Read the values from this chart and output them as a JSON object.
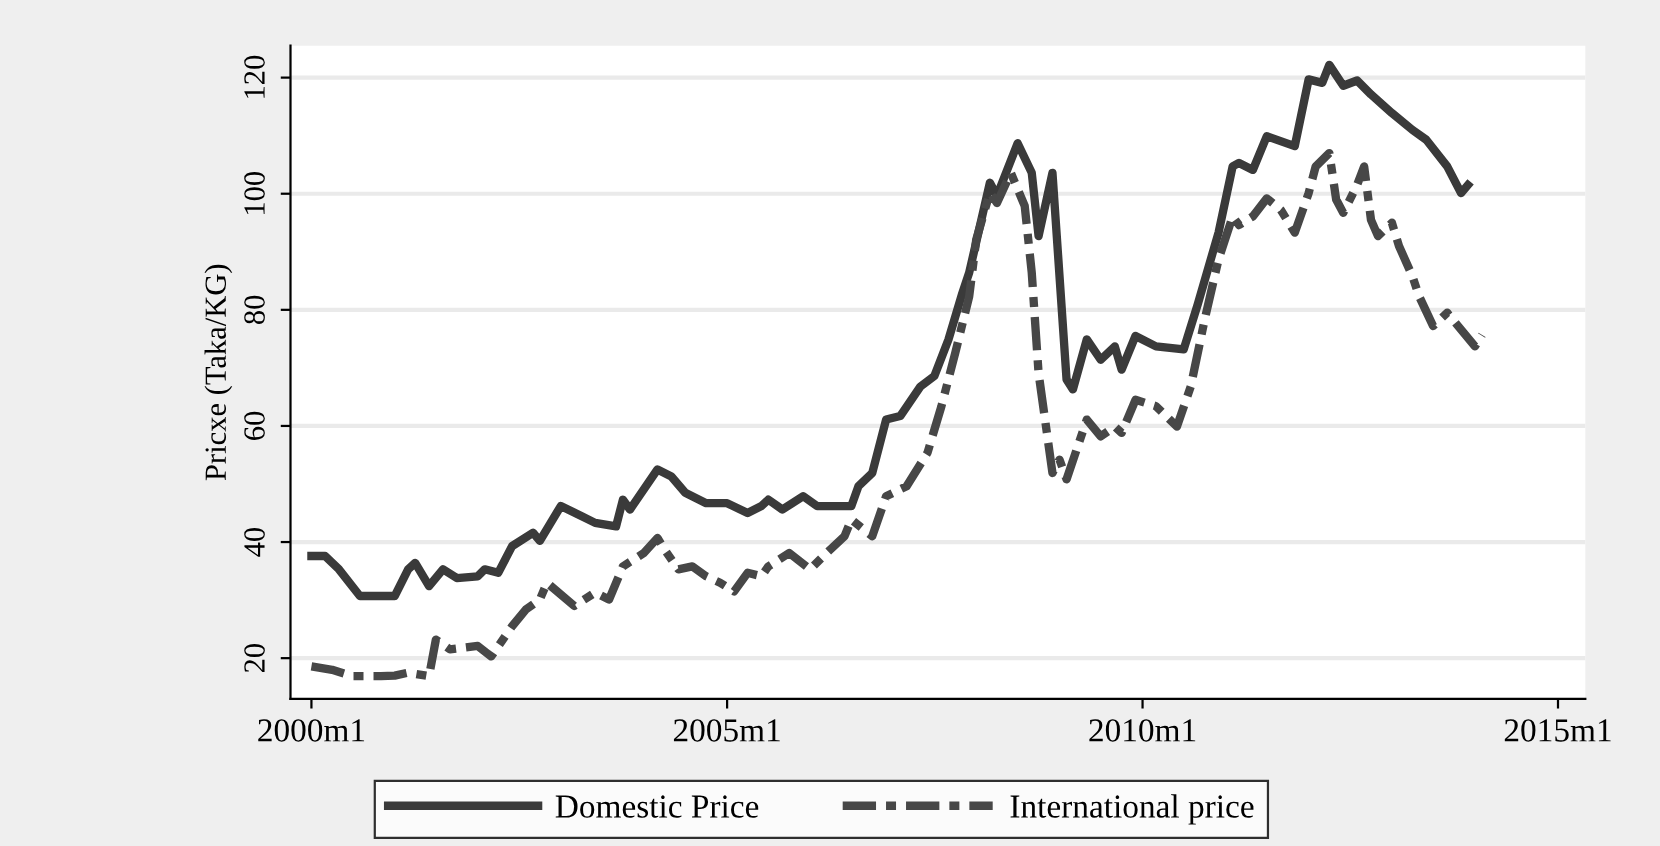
{
  "chart_data": {
    "type": "line",
    "ylabel": "Pricxe (Taka/KG)",
    "xlim": [
      "1999-10",
      "2015-05"
    ],
    "xticks": [
      {
        "value": "2000-01",
        "label": "2000m1"
      },
      {
        "value": "2005-01",
        "label": "2005m1"
      },
      {
        "value": "2010-01",
        "label": "2010m1"
      },
      {
        "value": "2015-01",
        "label": "2015m1"
      }
    ],
    "ylim": [
      13,
      125.5
    ],
    "yticks": [
      20,
      40,
      60,
      80,
      100,
      120
    ],
    "grid": "y",
    "legend": "bottom",
    "series": [
      {
        "name": "Domestic Price",
        "color": "#3a3a3a",
        "line_style": "solid",
        "x": [
          "2000-01",
          "2000-03",
          "2000-05",
          "2000-08",
          "2000-11",
          "2001-01",
          "2001-03",
          "2001-04",
          "2001-06",
          "2001-08",
          "2001-10",
          "2002-01",
          "2002-02",
          "2002-04",
          "2002-06",
          "2002-09",
          "2002-10",
          "2003-01",
          "2003-04",
          "2003-06",
          "2003-09",
          "2003-10",
          "2003-11",
          "2004-03",
          "2004-05",
          "2004-07",
          "2004-10",
          "2005-01",
          "2005-04",
          "2005-06",
          "2005-07",
          "2005-09",
          "2005-12",
          "2006-02",
          "2006-07",
          "2006-08",
          "2006-10",
          "2006-12",
          "2007-02",
          "2007-05",
          "2007-07",
          "2007-09",
          "2007-11",
          "2007-12",
          "2008-03",
          "2008-04",
          "2008-07",
          "2008-09",
          "2008-10",
          "2008-12",
          "2009-02",
          "2009-03",
          "2009-05",
          "2009-07",
          "2009-09",
          "2009-10",
          "2009-12",
          "2010-03",
          "2010-07",
          "2010-09",
          "2010-12",
          "2011-02",
          "2011-03",
          "2011-05",
          "2011-07",
          "2011-11",
          "2012-01",
          "2012-03",
          "2012-04",
          "2012-06",
          "2012-08",
          "2012-10",
          "2013-01",
          "2013-04",
          "2013-06",
          "2013-09",
          "2013-11",
          "2013-12"
        ],
        "values": [
          37.6,
          37.6,
          35.3,
          30.7,
          30.7,
          30.7,
          35.3,
          36.4,
          32.4,
          35.3,
          33.8,
          34.1,
          35.3,
          34.7,
          39.3,
          41.6,
          40.2,
          46.2,
          44.5,
          43.3,
          42.7,
          47.3,
          45.6,
          52.5,
          51.3,
          48.5,
          46.7,
          46.7,
          45.0,
          46.2,
          47.3,
          45.6,
          47.9,
          46.2,
          46.2,
          49.6,
          51.9,
          61.1,
          61.7,
          66.8,
          68.6,
          74.9,
          82.9,
          86.4,
          101.9,
          99.6,
          108.7,
          103.6,
          92.7,
          103.6,
          68.0,
          66.3,
          74.9,
          71.4,
          73.7,
          69.7,
          75.5,
          73.7,
          73.2,
          81.0,
          93.3,
          104.7,
          105.3,
          104.1,
          109.9,
          108.2,
          119.7,
          119.1,
          122.2,
          118.6,
          119.5,
          117.1,
          113.9,
          111.0,
          109.3,
          104.7,
          100.1,
          101.5
        ]
      },
      {
        "name": "International price",
        "color": "#474747",
        "line_style": "dashed",
        "x": [
          "2000-01",
          "2000-04",
          "2000-07",
          "2000-11",
          "2001-01",
          "2001-03",
          "2001-06",
          "2001-07",
          "2001-09",
          "2002-01",
          "2002-03",
          "2002-06",
          "2002-08",
          "2002-10",
          "2002-11",
          "2003-03",
          "2003-06",
          "2003-08",
          "2003-10",
          "2004-01",
          "2004-03",
          "2004-04",
          "2004-06",
          "2004-08",
          "2004-10",
          "2004-12",
          "2005-02",
          "2005-04",
          "2005-06",
          "2005-07",
          "2005-10",
          "2006-01",
          "2006-03",
          "2006-06",
          "2006-07",
          "2006-10",
          "2006-12",
          "2007-03",
          "2007-06",
          "2007-08",
          "2007-10",
          "2007-12",
          "2008-01",
          "2008-03",
          "2008-04",
          "2008-06",
          "2008-08",
          "2008-09",
          "2008-10",
          "2008-12",
          "2009-01",
          "2009-02",
          "2009-05",
          "2009-07",
          "2009-09",
          "2009-10",
          "2009-12",
          "2010-03",
          "2010-06",
          "2010-08",
          "2010-10",
          "2010-12",
          "2011-02",
          "2011-03",
          "2011-05",
          "2011-07",
          "2011-09",
          "2011-11",
          "2012-01",
          "2012-02",
          "2012-04",
          "2012-05",
          "2012-06",
          "2012-08",
          "2012-09",
          "2012-10",
          "2012-11",
          "2013-01",
          "2013-02",
          "2013-04",
          "2013-05",
          "2013-07",
          "2013-09",
          "2013-11",
          "2014-01",
          "2014-02"
        ],
        "values": [
          18.6,
          18.0,
          16.9,
          16.9,
          17.0,
          17.5,
          16.9,
          23.2,
          21.5,
          22.1,
          20.3,
          25.5,
          28.4,
          30.1,
          33.0,
          29.0,
          31.3,
          30.1,
          35.8,
          38.1,
          40.7,
          38.7,
          35.3,
          35.8,
          34.1,
          33.0,
          31.5,
          34.7,
          34.1,
          35.8,
          38.1,
          35.3,
          37.6,
          41.0,
          43.9,
          41.0,
          47.9,
          49.6,
          55.4,
          63.4,
          72.6,
          82.3,
          92.1,
          100.2,
          98.4,
          103.6,
          97.9,
          86.4,
          69.1,
          51.9,
          54.2,
          50.8,
          61.1,
          58.2,
          59.9,
          58.8,
          64.5,
          63.4,
          59.9,
          66.8,
          78.3,
          88.7,
          96.1,
          94.6,
          96.1,
          99.2,
          97.2,
          93.3,
          100.1,
          104.7,
          107.0,
          99.0,
          96.7,
          101.5,
          104.7,
          95.5,
          92.7,
          95.0,
          91.0,
          85.8,
          82.3,
          77.2,
          79.5,
          76.6,
          73.7,
          75.7
        ]
      }
    ]
  }
}
